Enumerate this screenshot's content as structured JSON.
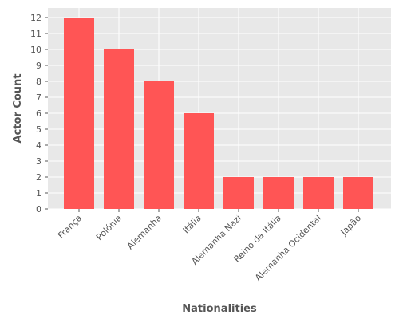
{
  "chart_data": {
    "type": "bar",
    "title": "",
    "xlabel": "Nationalities",
    "ylabel": "Actor Count",
    "categories": [
      "França",
      "Polónia",
      "Alemanha",
      "Itália",
      "Alemanha Nazi",
      "Reino da Itália",
      "Alemanha Ocidental",
      "Japão"
    ],
    "values": [
      12,
      10,
      8,
      6,
      2,
      2,
      2,
      2
    ],
    "ylim": [
      0,
      12.6
    ],
    "yticks": [
      0,
      1,
      2,
      3,
      4,
      5,
      6,
      7,
      8,
      9,
      10,
      11,
      12
    ],
    "grid": true,
    "legend": "none",
    "colors": {
      "bar": "#ff5555",
      "plot_background": "#e8e8e8",
      "grid": "#ffffff",
      "text": "#555555"
    }
  }
}
